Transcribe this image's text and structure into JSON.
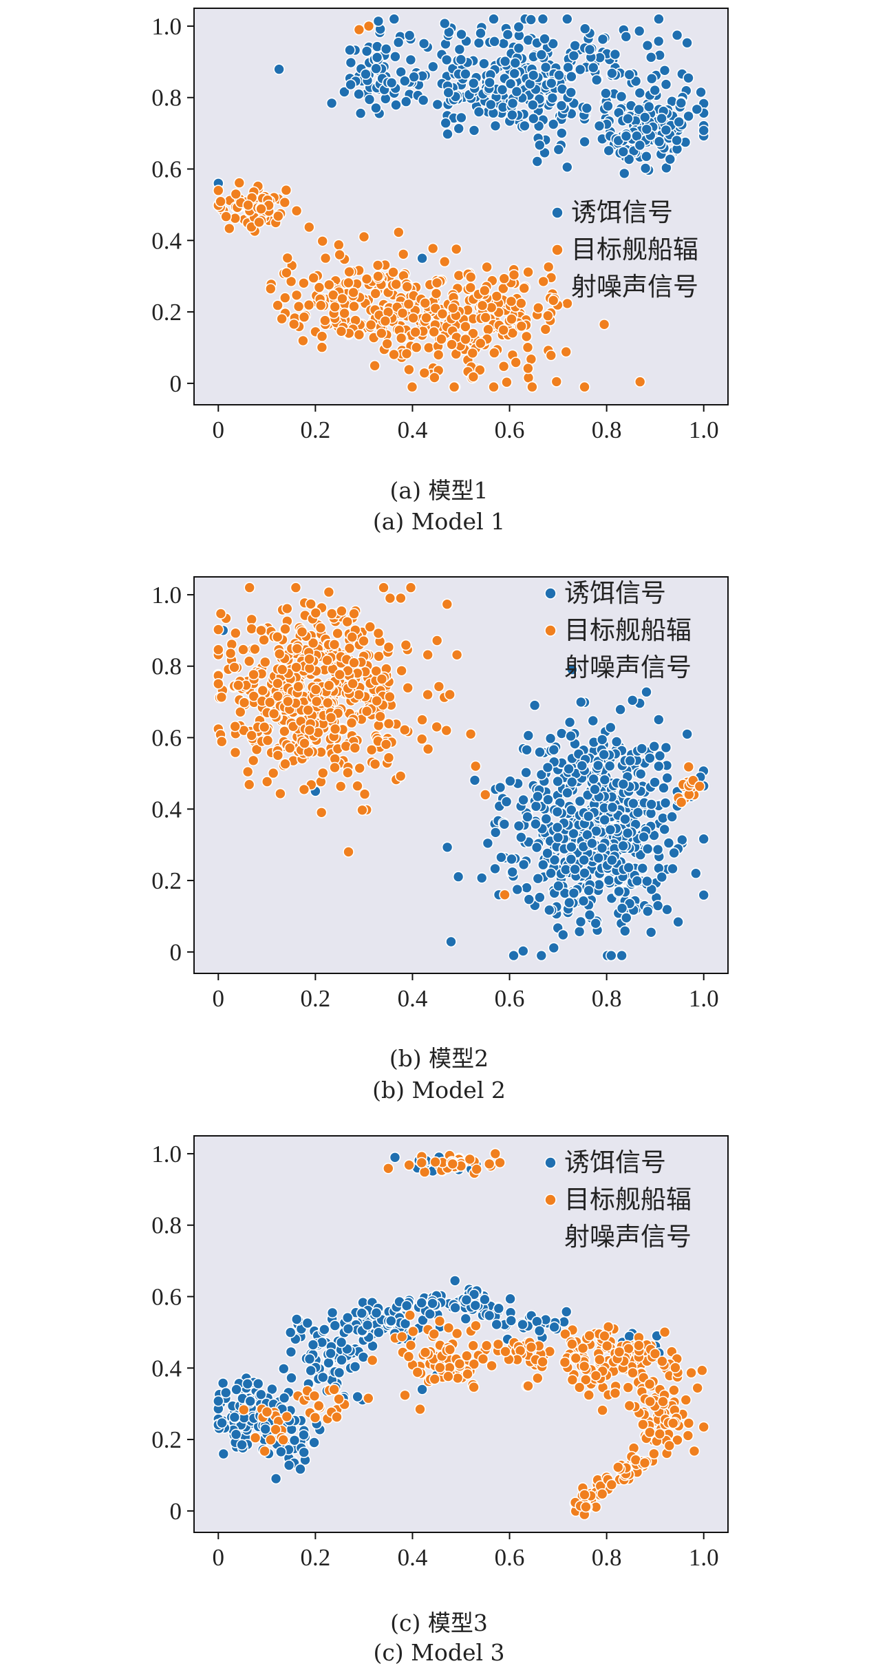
{
  "colors": {
    "decoy": "#1f6fb0",
    "ship": "#f07f1e",
    "background": "#e6e6ef"
  },
  "chart_data": [
    {
      "type": "scatter",
      "xlim": [
        -0.05,
        1.05
      ],
      "ylim": [
        -0.06,
        1.05
      ],
      "xticks": [
        "0",
        "0.2",
        "0.4",
        "0.6",
        "0.8",
        "1.0"
      ],
      "yticks": [
        "0",
        "0.2",
        "0.4",
        "0.6",
        "0.8",
        "1.0"
      ],
      "legend": {
        "items": [
          "诱饵信号",
          "目标舰船辐",
          "射噪声信号"
        ],
        "placement": "right"
      },
      "caption_cn": "(a) 模型1",
      "caption_en": "(a) Model 1",
      "series": [
        {
          "role": "decoy",
          "clusters": [
            {
              "cx": 0.65,
              "cy": 0.85,
              "sx": 0.15,
              "sy": 0.08,
              "n": 340
            },
            {
              "cx": 0.32,
              "cy": 0.86,
              "sx": 0.03,
              "sy": 0.06,
              "n": 50
            },
            {
              "cx": 0.89,
              "cy": 0.7,
              "sx": 0.05,
              "sy": 0.05,
              "n": 110
            }
          ],
          "points": [
            [
              0.0,
              0.56
            ],
            [
              0.42,
              0.35
            ]
          ]
        },
        {
          "role": "ship",
          "clusters": [
            {
              "cx": 0.07,
              "cy": 0.5,
              "sx": 0.04,
              "sy": 0.03,
              "n": 70
            },
            {
              "cx": 0.3,
              "cy": 0.22,
              "sx": 0.09,
              "sy": 0.06,
              "n": 180
            },
            {
              "cx": 0.53,
              "cy": 0.16,
              "sx": 0.1,
              "sy": 0.09,
              "n": 220
            }
          ],
          "points": [
            [
              0.29,
              0.99
            ],
            [
              0.31,
              1.0
            ],
            [
              0.25,
              0.36
            ]
          ]
        }
      ]
    },
    {
      "type": "scatter",
      "xlim": [
        -0.05,
        1.05
      ],
      "ylim": [
        -0.06,
        1.05
      ],
      "xticks": [
        "0",
        "0.2",
        "0.4",
        "0.6",
        "0.8",
        "1.0"
      ],
      "yticks": [
        "0",
        "0.2",
        "0.4",
        "0.6",
        "0.8",
        "1.0"
      ],
      "legend": {
        "items": [
          "诱饵信号",
          "目标舰船辐",
          "射噪声信号"
        ],
        "placement": "top-right"
      },
      "caption_cn": "(b) 模型2",
      "caption_en": "(b) Model 2",
      "series": [
        {
          "role": "decoy",
          "clusters": [
            {
              "cx": 0.77,
              "cy": 0.35,
              "sx": 0.09,
              "sy": 0.14,
              "n": 600
            }
          ],
          "points": [
            [
              0.01,
              0.9
            ],
            [
              0.2,
              0.45
            ]
          ]
        },
        {
          "role": "ship",
          "clusters": [
            {
              "cx": 0.2,
              "cy": 0.72,
              "sx": 0.1,
              "sy": 0.12,
              "n": 560
            },
            {
              "cx": 0.98,
              "cy": 0.47,
              "sx": 0.012,
              "sy": 0.03,
              "n": 14
            }
          ],
          "points": [
            [
              0.42,
              0.65
            ],
            [
              0.45,
              0.63
            ],
            [
              0.47,
              0.62
            ],
            [
              0.52,
              0.61
            ],
            [
              0.53,
              0.52
            ],
            [
              0.55,
              0.44
            ],
            [
              0.59,
              0.16
            ]
          ]
        }
      ]
    },
    {
      "type": "scatter",
      "xlim": [
        -0.05,
        1.05
      ],
      "ylim": [
        -0.06,
        1.05
      ],
      "xticks": [
        "0",
        "0.2",
        "0.4",
        "0.6",
        "0.8",
        "1.0"
      ],
      "yticks": [
        "0",
        "0.2",
        "0.4",
        "0.6",
        "0.8",
        "1.0"
      ],
      "legend": {
        "items": [
          "诱饵信号",
          "目标舰船辐",
          "射噪声信号"
        ],
        "placement": "top-right"
      },
      "caption_cn": "(c) 模型3",
      "caption_en": "(c) Model 3",
      "series": [
        {
          "role": "decoy",
          "clusters": [
            {
              "cx": 0.06,
              "cy": 0.27,
              "sx": 0.04,
              "sy": 0.05,
              "n": 120
            },
            {
              "cx": 0.15,
              "cy": 0.2,
              "sx": 0.03,
              "sy": 0.05,
              "n": 40
            },
            {
              "cx": 0.22,
              "cy": 0.42,
              "sx": 0.04,
              "sy": 0.06,
              "n": 70
            },
            {
              "cx": 0.35,
              "cy": 0.53,
              "sx": 0.05,
              "sy": 0.03,
              "n": 80
            },
            {
              "cx": 0.49,
              "cy": 0.58,
              "sx": 0.05,
              "sy": 0.02,
              "n": 60
            },
            {
              "cx": 0.63,
              "cy": 0.53,
              "sx": 0.04,
              "sy": 0.02,
              "n": 30
            },
            {
              "cx": 0.88,
              "cy": 0.46,
              "sx": 0.03,
              "sy": 0.02,
              "n": 20
            },
            {
              "cx": 0.45,
              "cy": 0.97,
              "sx": 0.04,
              "sy": 0.01,
              "n": 20
            }
          ],
          "points": [
            [
              0.42,
              0.34
            ],
            [
              0.45,
              0.38
            ]
          ]
        },
        {
          "role": "ship",
          "clusters": [
            {
              "cx": 0.48,
              "cy": 0.97,
              "sx": 0.05,
              "sy": 0.013,
              "n": 40
            },
            {
              "cx": 0.46,
              "cy": 0.42,
              "sx": 0.05,
              "sy": 0.05,
              "n": 70
            },
            {
              "cx": 0.62,
              "cy": 0.45,
              "sx": 0.03,
              "sy": 0.02,
              "n": 30
            },
            {
              "cx": 0.8,
              "cy": 0.42,
              "sx": 0.07,
              "sy": 0.04,
              "n": 140
            },
            {
              "cx": 0.92,
              "cy": 0.26,
              "sx": 0.03,
              "sy": 0.06,
              "n": 70
            },
            {
              "cx": 0.1,
              "cy": 0.26,
              "sx": 0.03,
              "sy": 0.06,
              "n": 15
            },
            {
              "cx": 0.22,
              "cy": 0.3,
              "sx": 0.04,
              "sy": 0.04,
              "n": 20
            }
          ],
          "points": [],
          "lines": [
            {
              "from": [
                0.74,
                0.01
              ],
              "to": [
                0.88,
                0.15
              ],
              "n": 70,
              "jitter": 0.012
            }
          ]
        }
      ]
    }
  ]
}
